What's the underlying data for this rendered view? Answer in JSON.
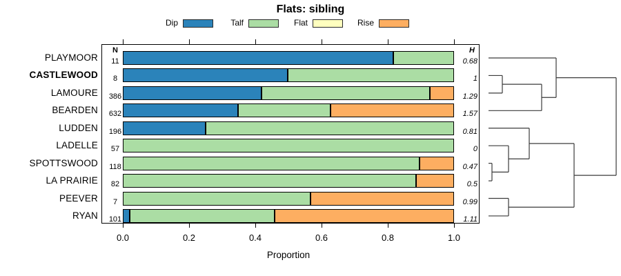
{
  "chart_data": {
    "type": "bar",
    "orientation": "horizontal",
    "stacked": true,
    "title": "Flats: sibling",
    "xlabel": "Proportion",
    "xlim": [
      0,
      1
    ],
    "xtick_labels": [
      "0.0",
      "0.2",
      "0.4",
      "0.6",
      "0.8",
      "1.0"
    ],
    "grid": false,
    "legend_position": "top",
    "legend": [
      {
        "key": "dip",
        "label": "Dip",
        "color": "#2B83BA"
      },
      {
        "key": "talf",
        "label": "Talf",
        "color": "#ABDDA4"
      },
      {
        "key": "flat",
        "label": "Flat",
        "color": "#FFFFBF"
      },
      {
        "key": "rise",
        "label": "Rise",
        "color": "#FDAE61"
      }
    ],
    "columns": {
      "n_header": "N",
      "h_header": "H"
    },
    "rows": [
      {
        "label": "PLAYMOOR",
        "bold": false,
        "n": "11",
        "h": "0.68",
        "values": {
          "dip": 0.82,
          "talf": 0.18,
          "flat": 0,
          "rise": 0
        }
      },
      {
        "label": "CASTLEWOOD",
        "bold": true,
        "n": "8",
        "h": "1",
        "values": {
          "dip": 0.5,
          "talf": 0.5,
          "flat": 0,
          "rise": 0
        }
      },
      {
        "label": "LAMOURE",
        "bold": false,
        "n": "386",
        "h": "1.29",
        "values": {
          "dip": 0.42,
          "talf": 0.51,
          "flat": 0,
          "rise": 0.07
        }
      },
      {
        "label": "BEARDEN",
        "bold": false,
        "n": "632",
        "h": "1.57",
        "values": {
          "dip": 0.35,
          "talf": 0.28,
          "flat": 0,
          "rise": 0.37
        }
      },
      {
        "label": "LUDDEN",
        "bold": false,
        "n": "196",
        "h": "0.81",
        "values": {
          "dip": 0.25,
          "talf": 0.75,
          "flat": 0,
          "rise": 0
        }
      },
      {
        "label": "LADELLE",
        "bold": false,
        "n": "57",
        "h": "0",
        "values": {
          "dip": 0,
          "talf": 1.0,
          "flat": 0,
          "rise": 0
        }
      },
      {
        "label": "SPOTTSWOOD",
        "bold": false,
        "n": "118",
        "h": "0.47",
        "values": {
          "dip": 0,
          "talf": 0.9,
          "flat": 0,
          "rise": 0.1
        }
      },
      {
        "label": "LA PRAIRIE",
        "bold": false,
        "n": "82",
        "h": "0.5",
        "values": {
          "dip": 0,
          "talf": 0.89,
          "flat": 0,
          "rise": 0.11
        }
      },
      {
        "label": "PEEVER",
        "bold": false,
        "n": "7",
        "h": "0.99",
        "values": {
          "dip": 0,
          "talf": 0.57,
          "flat": 0,
          "rise": 0.43
        }
      },
      {
        "label": "RYAN",
        "bold": false,
        "n": "101",
        "h": "1.11",
        "values": {
          "dip": 0.02,
          "talf": 0.44,
          "flat": 0,
          "rise": 0.54
        }
      }
    ],
    "dendrogram": {
      "leaf_order": [
        "PLAYMOOR",
        "CASTLEWOOD",
        "LAMOURE",
        "BEARDEN",
        "LUDDEN",
        "LADELLE",
        "SPOTTSWOOD",
        "LA PRAIRIE",
        "PEEVER",
        "RYAN"
      ],
      "merges": [
        {
          "x": 728,
          "a": {
            "leaf": 1
          },
          "b": {
            "leaf": 2
          }
        },
        {
          "x": 785,
          "a": {
            "node": 0
          },
          "b": {
            "leaf": 3
          }
        },
        {
          "x": 806,
          "a": {
            "leaf": 0
          },
          "b": {
            "node": 1
          }
        },
        {
          "x": 713,
          "a": {
            "leaf": 6
          },
          "b": {
            "leaf": 7
          }
        },
        {
          "x": 737,
          "a": {
            "leaf": 5
          },
          "b": {
            "node": 3
          }
        },
        {
          "x": 767,
          "a": {
            "leaf": 4
          },
          "b": {
            "node": 4
          }
        },
        {
          "x": 737,
          "a": {
            "leaf": 8
          },
          "b": {
            "leaf": 9
          }
        },
        {
          "x": 832,
          "a": {
            "node": 5
          },
          "b": {
            "node": 6
          }
        },
        {
          "x": 893,
          "a": {
            "node": 2
          },
          "b": {
            "node": 7
          }
        }
      ]
    }
  }
}
